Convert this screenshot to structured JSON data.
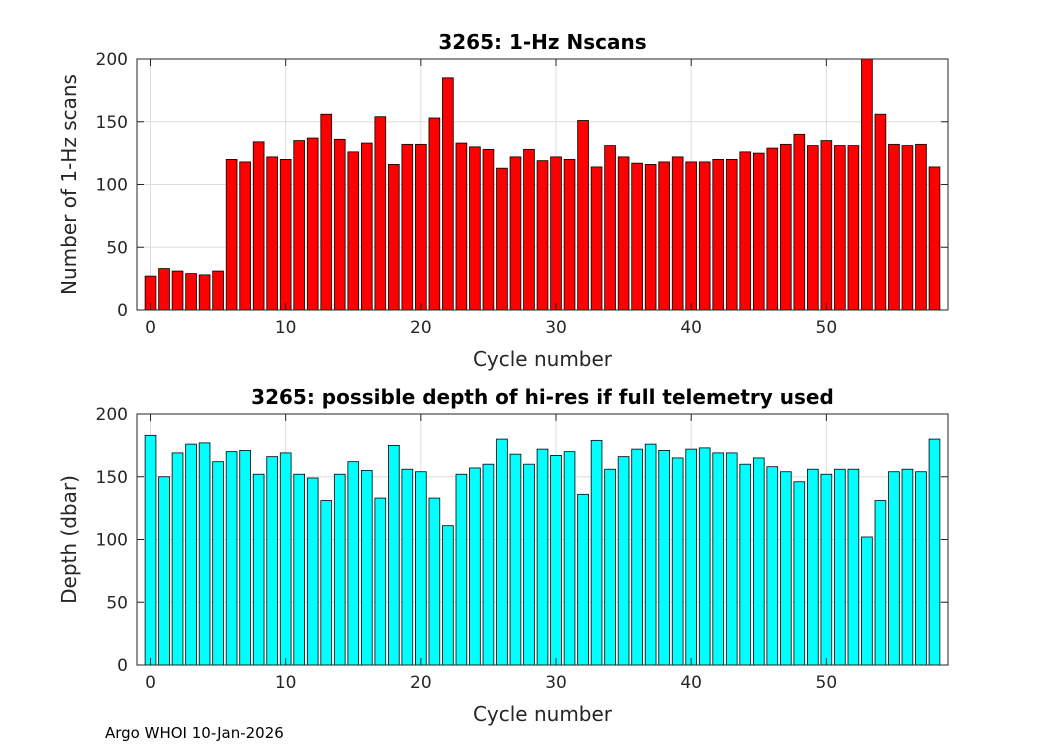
{
  "footer": "Argo WHOI 10-Jan-2026",
  "chart_data": [
    {
      "type": "bar",
      "title": "3265: 1-Hz Nscans",
      "xlabel": "Cycle number",
      "ylabel": "Number of 1-Hz scans",
      "xlim": [
        -1,
        59
      ],
      "ylim": [
        0,
        200
      ],
      "xticks": [
        0,
        10,
        20,
        30,
        40,
        50
      ],
      "yticks": [
        0,
        50,
        100,
        150,
        200
      ],
      "grid": true,
      "bar_color": "#ff0000",
      "x": [
        0,
        1,
        2,
        3,
        4,
        5,
        6,
        7,
        8,
        9,
        10,
        11,
        12,
        13,
        14,
        15,
        16,
        17,
        18,
        19,
        20,
        21,
        22,
        23,
        24,
        25,
        26,
        27,
        28,
        29,
        30,
        31,
        32,
        33,
        34,
        35,
        36,
        37,
        38,
        39,
        40,
        41,
        42,
        43,
        44,
        45,
        46,
        47,
        48,
        49,
        50,
        51,
        52,
        53,
        54,
        55,
        56,
        57,
        58
      ],
      "values": [
        27,
        33,
        31,
        29,
        28,
        31,
        120,
        118,
        134,
        122,
        120,
        135,
        137,
        156,
        136,
        126,
        133,
        154,
        116,
        132,
        132,
        153,
        185,
        133,
        130,
        128,
        113,
        122,
        128,
        119,
        122,
        120,
        151,
        114,
        131,
        122,
        117,
        116,
        118,
        122,
        118,
        118,
        120,
        120,
        126,
        125,
        129,
        132,
        140,
        131,
        135,
        131,
        131,
        200,
        156,
        132,
        131,
        132,
        114
      ]
    },
    {
      "type": "bar",
      "title": "3265: possible depth of hi-res if full telemetry used",
      "xlabel": "Cycle number",
      "ylabel": "Depth (dbar)",
      "xlim": [
        -1,
        59
      ],
      "ylim": [
        0,
        200
      ],
      "xticks": [
        0,
        10,
        20,
        30,
        40,
        50
      ],
      "yticks": [
        0,
        50,
        100,
        150,
        200
      ],
      "grid": true,
      "bar_color": "#00ffff",
      "x": [
        0,
        1,
        2,
        3,
        4,
        5,
        6,
        7,
        8,
        9,
        10,
        11,
        12,
        13,
        14,
        15,
        16,
        17,
        18,
        19,
        20,
        21,
        22,
        23,
        24,
        25,
        26,
        27,
        28,
        29,
        30,
        31,
        32,
        33,
        34,
        35,
        36,
        37,
        38,
        39,
        40,
        41,
        42,
        43,
        44,
        45,
        46,
        47,
        48,
        49,
        50,
        51,
        52,
        53,
        54,
        55,
        56,
        57,
        58
      ],
      "values": [
        183,
        150,
        169,
        176,
        177,
        162,
        170,
        171,
        152,
        166,
        169,
        152,
        149,
        131,
        152,
        162,
        155,
        133,
        175,
        156,
        154,
        133,
        111,
        152,
        157,
        160,
        180,
        168,
        160,
        172,
        167,
        170,
        136,
        179,
        156,
        166,
        172,
        176,
        171,
        165,
        172,
        173,
        169,
        169,
        160,
        165,
        158,
        154,
        146,
        156,
        152,
        156,
        156,
        102,
        131,
        154,
        156,
        154,
        180
      ]
    }
  ]
}
